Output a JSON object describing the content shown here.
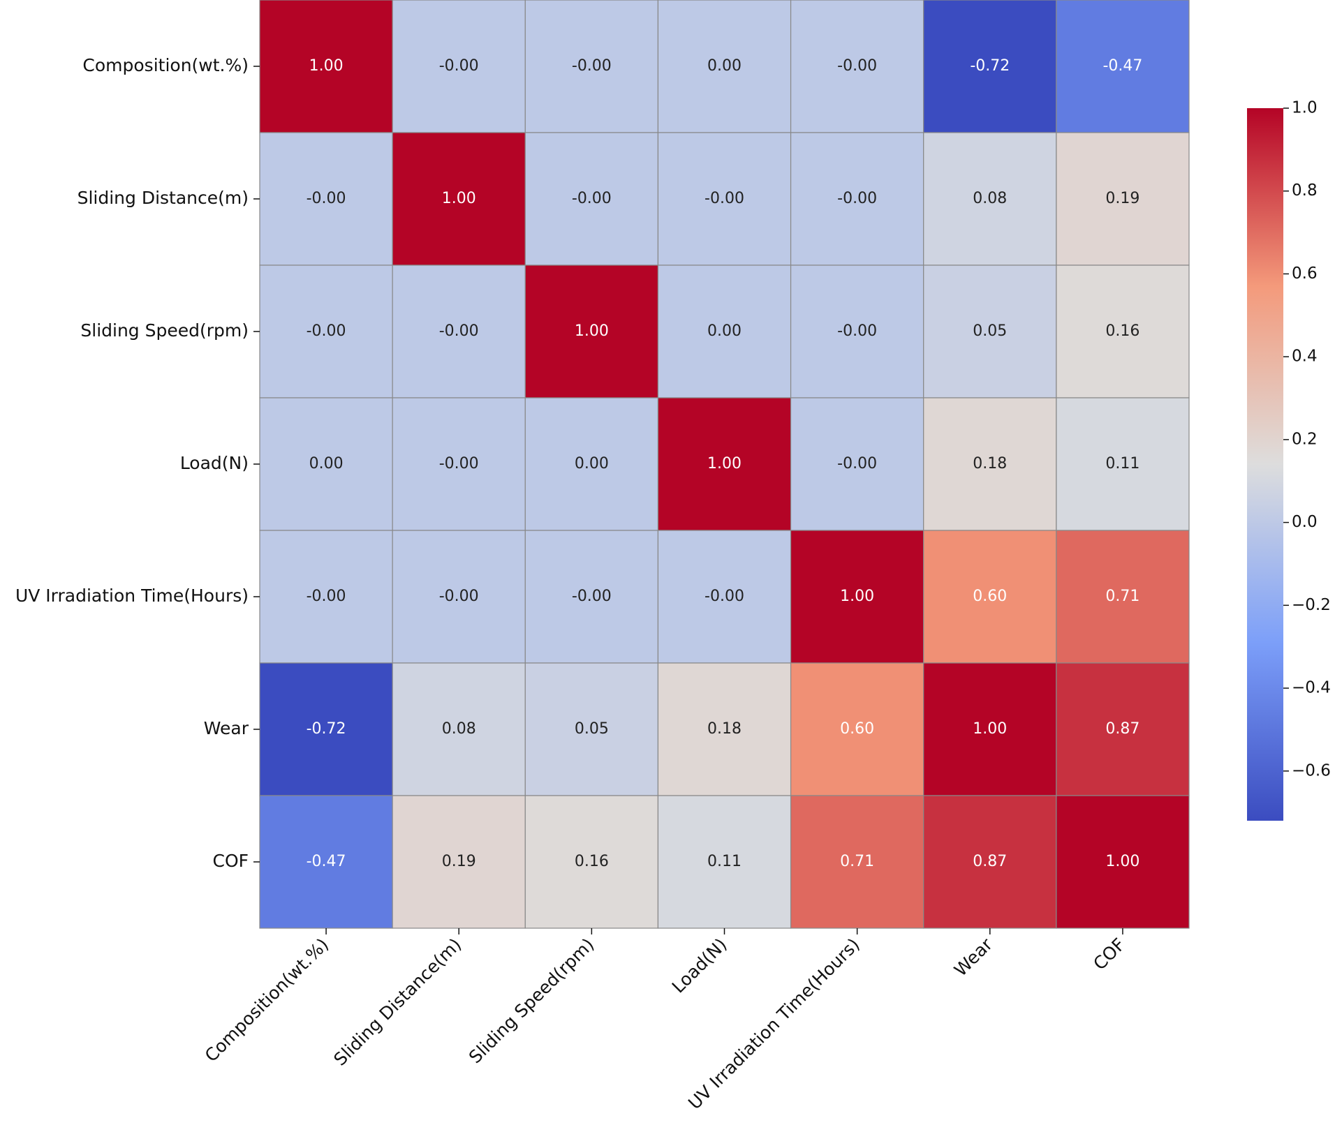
{
  "chart_data": {
    "type": "heatmap",
    "categories": [
      "Composition(wt.%)",
      "Sliding Distance(m)",
      "Sliding Speed(rpm)",
      "Load(N)",
      "UV Irradiation Time(Hours)",
      "Wear",
      "COF"
    ],
    "values": [
      [
        1,
        0,
        0,
        0,
        0,
        -0.72,
        -0.47
      ],
      [
        0,
        1,
        0,
        0,
        0,
        0.08,
        0.19
      ],
      [
        0,
        0,
        1,
        0,
        0,
        0.05,
        0.16
      ],
      [
        0,
        0,
        0,
        1,
        0,
        0.18,
        0.11
      ],
      [
        0,
        0,
        0,
        0,
        1,
        0.6,
        0.71
      ],
      [
        -0.72,
        0.08,
        0.05,
        0.18,
        0.6,
        1,
        0.87
      ],
      [
        -0.47,
        0.19,
        0.16,
        0.11,
        0.71,
        0.87,
        1
      ]
    ],
    "value_labels": [
      [
        "1.00",
        "-0.00",
        "-0.00",
        "0.00",
        "-0.00",
        "-0.72",
        "-0.47"
      ],
      [
        "-0.00",
        "1.00",
        "-0.00",
        "-0.00",
        "-0.00",
        "0.08",
        "0.19"
      ],
      [
        "-0.00",
        "-0.00",
        "1.00",
        "0.00",
        "-0.00",
        "0.05",
        "0.16"
      ],
      [
        "0.00",
        "-0.00",
        "0.00",
        "1.00",
        "-0.00",
        "0.18",
        "0.11"
      ],
      [
        "-0.00",
        "-0.00",
        "-0.00",
        "-0.00",
        "1.00",
        "0.60",
        "0.71"
      ],
      [
        "-0.72",
        "0.08",
        "0.05",
        "0.18",
        "0.60",
        "1.00",
        "0.87"
      ],
      [
        "-0.47",
        "0.19",
        "0.16",
        "0.11",
        "0.71",
        "0.87",
        "1.00"
      ]
    ],
    "cmap": "coolwarm",
    "clim": [
      -0.72,
      1.0
    ],
    "cticks": [
      {
        "value": 1.0,
        "label": "1.0"
      },
      0.8,
      0.6,
      0.4,
      0.2,
      {
        "value": 0,
        "label": "0.0"
      },
      {
        "value": -0.2,
        "label": "−0.2"
      },
      {
        "value": -0.4,
        "label": "−0.4"
      },
      {
        "value": -0.6,
        "label": "−0.6"
      }
    ]
  }
}
